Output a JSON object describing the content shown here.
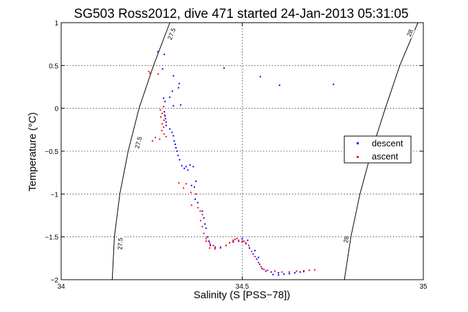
{
  "chart_data": {
    "type": "scatter",
    "title": "SG503 Ross2012, dive 471 started 24-Jan-2013 05:31:05",
    "xlabel": "Salinity (S [PSS−78])",
    "ylabel": "Temperature (°C)",
    "xlim": [
      34,
      35
    ],
    "ylim": [
      -2,
      1
    ],
    "grid": true,
    "x_ticks": [
      {
        "value": 34,
        "label": "34"
      },
      {
        "value": 34.5,
        "label": "34.5"
      },
      {
        "value": 35,
        "label": "35"
      }
    ],
    "y_ticks": [
      {
        "value": 1,
        "label": "1"
      },
      {
        "value": 0.5,
        "label": "0.5"
      },
      {
        "value": 0,
        "label": "0"
      },
      {
        "value": -0.5,
        "label": "−0.5"
      },
      {
        "value": -1,
        "label": "−1"
      },
      {
        "value": -1.5,
        "label": "−1.5"
      },
      {
        "value": -2,
        "label": "−2"
      }
    ],
    "legend": {
      "position": "right",
      "entries": [
        "descent",
        "ascent"
      ]
    },
    "colors": {
      "descent": "#0000ff",
      "ascent": "#ff0000",
      "axes": "#000000"
    },
    "contours": [
      {
        "name": "27.5",
        "points": [
          [
            34.3,
            1.0
          ],
          [
            34.255,
            0.5
          ],
          [
            34.215,
            0.0
          ],
          [
            34.185,
            -0.5
          ],
          [
            34.162,
            -1.0
          ],
          [
            34.147,
            -1.5
          ],
          [
            34.141,
            -2.0
          ]
        ],
        "labels": [
          {
            "text": "27.5",
            "s": 34.305,
            "t": 0.87
          },
          {
            "text": "27.5",
            "s": 34.213,
            "t": -0.4
          },
          {
            "text": "27.5",
            "s": 34.163,
            "t": -1.58
          }
        ]
      },
      {
        "name": "28",
        "points": [
          [
            34.985,
            1.0
          ],
          [
            34.935,
            0.5
          ],
          [
            34.895,
            0.0
          ],
          [
            34.857,
            -0.5
          ],
          [
            34.825,
            -1.0
          ],
          [
            34.8,
            -1.5
          ],
          [
            34.782,
            -2.0
          ]
        ],
        "labels": [
          {
            "text": "28",
            "s": 34.963,
            "t": 0.88
          },
          {
            "text": "28",
            "s": 34.787,
            "t": -1.53
          }
        ]
      }
    ],
    "series": [
      {
        "name": "descent",
        "points": [
          [
            34.267,
            0.66
          ],
          [
            34.285,
            0.63
          ],
          [
            34.28,
            0.46
          ],
          [
            34.31,
            0.38
          ],
          [
            34.326,
            0.29
          ],
          [
            34.324,
            0.24
          ],
          [
            34.307,
            0.2
          ],
          [
            34.3,
            0.13
          ],
          [
            34.283,
            0.12
          ],
          [
            34.287,
            0.08
          ],
          [
            34.31,
            0.03
          ],
          [
            34.33,
            0.04
          ],
          [
            34.45,
            0.47
          ],
          [
            34.55,
            0.37
          ],
          [
            34.603,
            0.27
          ],
          [
            34.752,
            0.28
          ],
          [
            34.285,
            -0.04
          ],
          [
            34.286,
            -0.08
          ],
          [
            34.288,
            -0.12
          ],
          [
            34.29,
            -0.16
          ],
          [
            34.29,
            -0.2
          ],
          [
            34.3,
            -0.24
          ],
          [
            34.306,
            -0.28
          ],
          [
            34.31,
            -0.32
          ],
          [
            34.312,
            -0.38
          ],
          [
            34.315,
            -0.42
          ],
          [
            34.317,
            -0.46
          ],
          [
            34.32,
            -0.5
          ],
          [
            34.323,
            -0.55
          ],
          [
            34.327,
            -0.6
          ],
          [
            34.333,
            -0.67
          ],
          [
            34.34,
            -0.7
          ],
          [
            34.345,
            -0.68
          ],
          [
            34.35,
            -0.72
          ],
          [
            34.356,
            -0.66
          ],
          [
            34.365,
            -0.68
          ],
          [
            34.372,
            -0.85
          ],
          [
            34.368,
            -0.92
          ],
          [
            34.36,
            -0.9
          ],
          [
            34.37,
            -1.06
          ],
          [
            34.377,
            -1.1
          ],
          [
            34.39,
            -1.2
          ],
          [
            34.394,
            -1.28
          ],
          [
            34.397,
            -1.35
          ],
          [
            34.4,
            -1.4
          ],
          [
            34.404,
            -1.5
          ],
          [
            34.408,
            -1.55
          ],
          [
            34.412,
            -1.6
          ],
          [
            34.425,
            -1.62
          ],
          [
            34.44,
            -1.62
          ],
          [
            34.455,
            -1.6
          ],
          [
            34.465,
            -1.57
          ],
          [
            34.475,
            -1.56
          ],
          [
            34.49,
            -1.55
          ],
          [
            34.5,
            -1.56
          ],
          [
            34.51,
            -1.58
          ],
          [
            34.52,
            -1.63
          ],
          [
            34.53,
            -1.7
          ],
          [
            34.54,
            -1.76
          ],
          [
            34.548,
            -1.82
          ],
          [
            34.555,
            -1.87
          ],
          [
            34.565,
            -1.9
          ],
          [
            34.58,
            -1.91
          ],
          [
            34.6,
            -1.92
          ],
          [
            34.615,
            -1.935
          ],
          [
            34.63,
            -1.93
          ],
          [
            34.645,
            -1.92
          ],
          [
            34.66,
            -1.91
          ],
          [
            34.67,
            -1.905
          ],
          [
            34.585,
            -1.94
          ],
          [
            34.6,
            -1.945
          ],
          [
            34.5,
            -1.52
          ],
          [
            34.515,
            -1.54
          ],
          [
            34.535,
            -1.66
          ],
          [
            34.545,
            -1.74
          ]
        ]
      },
      {
        "name": "ascent",
        "points": [
          [
            34.242,
            0.43
          ],
          [
            34.245,
            0.41
          ],
          [
            34.268,
            0.4
          ],
          [
            34.274,
            -0.02
          ],
          [
            34.279,
            -0.06
          ],
          [
            34.275,
            -0.1
          ],
          [
            34.284,
            -0.14
          ],
          [
            34.279,
            -0.18
          ],
          [
            34.283,
            -0.22
          ],
          [
            34.278,
            -0.26
          ],
          [
            34.284,
            -0.3
          ],
          [
            34.26,
            -0.34
          ],
          [
            34.272,
            -0.36
          ],
          [
            34.252,
            -0.38
          ],
          [
            34.29,
            -0.33
          ],
          [
            34.283,
            0.02
          ],
          [
            34.287,
            -0.09
          ],
          [
            34.325,
            -0.87
          ],
          [
            34.338,
            -0.93
          ],
          [
            34.345,
            -0.88
          ],
          [
            34.358,
            -0.98
          ],
          [
            34.372,
            -1.0
          ],
          [
            34.36,
            -1.13
          ],
          [
            34.378,
            -1.16
          ],
          [
            34.384,
            -1.2
          ],
          [
            34.39,
            -1.24
          ],
          [
            34.385,
            -1.31
          ],
          [
            34.39,
            -1.38
          ],
          [
            34.394,
            -1.46
          ],
          [
            34.4,
            -1.52
          ],
          [
            34.41,
            -1.57
          ],
          [
            34.42,
            -1.6
          ],
          [
            34.44,
            -1.63
          ],
          [
            34.455,
            -1.6
          ],
          [
            34.465,
            -1.57
          ],
          [
            34.475,
            -1.55
          ],
          [
            34.48,
            -1.53
          ],
          [
            34.49,
            -1.54
          ],
          [
            34.5,
            -1.55
          ],
          [
            34.51,
            -1.57
          ],
          [
            34.518,
            -1.6
          ],
          [
            34.526,
            -1.67
          ],
          [
            34.535,
            -1.73
          ],
          [
            34.545,
            -1.8
          ],
          [
            34.552,
            -1.85
          ],
          [
            34.56,
            -1.88
          ],
          [
            34.57,
            -1.89
          ],
          [
            34.59,
            -1.9
          ],
          [
            34.61,
            -1.91
          ],
          [
            34.63,
            -1.91
          ],
          [
            34.65,
            -1.9
          ],
          [
            34.67,
            -1.895
          ],
          [
            34.685,
            -1.89
          ],
          [
            34.7,
            -1.885
          ],
          [
            34.41,
            -1.63
          ],
          [
            34.4,
            -1.55
          ],
          [
            34.412,
            -1.59
          ],
          [
            34.425,
            -1.64
          ],
          [
            34.505,
            -1.55
          ],
          [
            34.485,
            -1.52
          ],
          [
            34.475,
            -1.54
          ]
        ]
      }
    ]
  }
}
